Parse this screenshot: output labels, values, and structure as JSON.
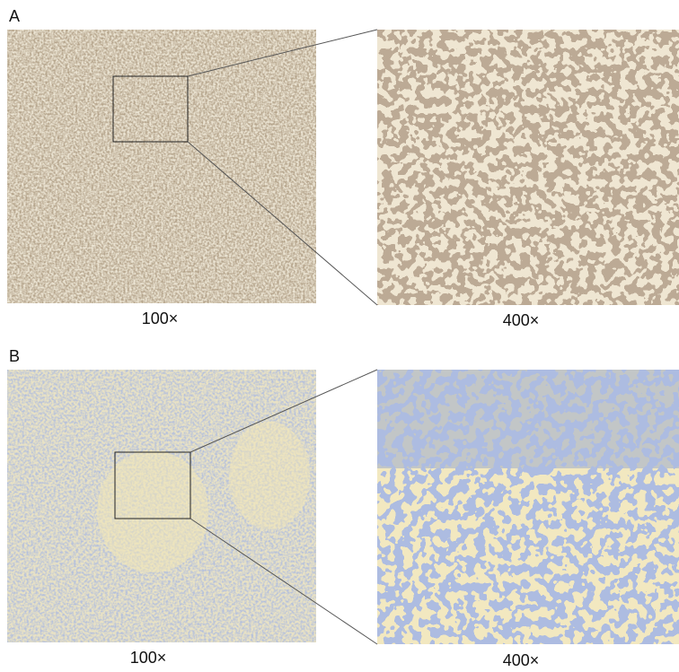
{
  "panels": [
    {
      "label": "A",
      "images": [
        {
          "caption": "100×"
        },
        {
          "caption": "400×"
        }
      ]
    },
    {
      "label": "B",
      "images": [
        {
          "caption": "100×"
        },
        {
          "caption": "400×"
        }
      ]
    }
  ]
}
